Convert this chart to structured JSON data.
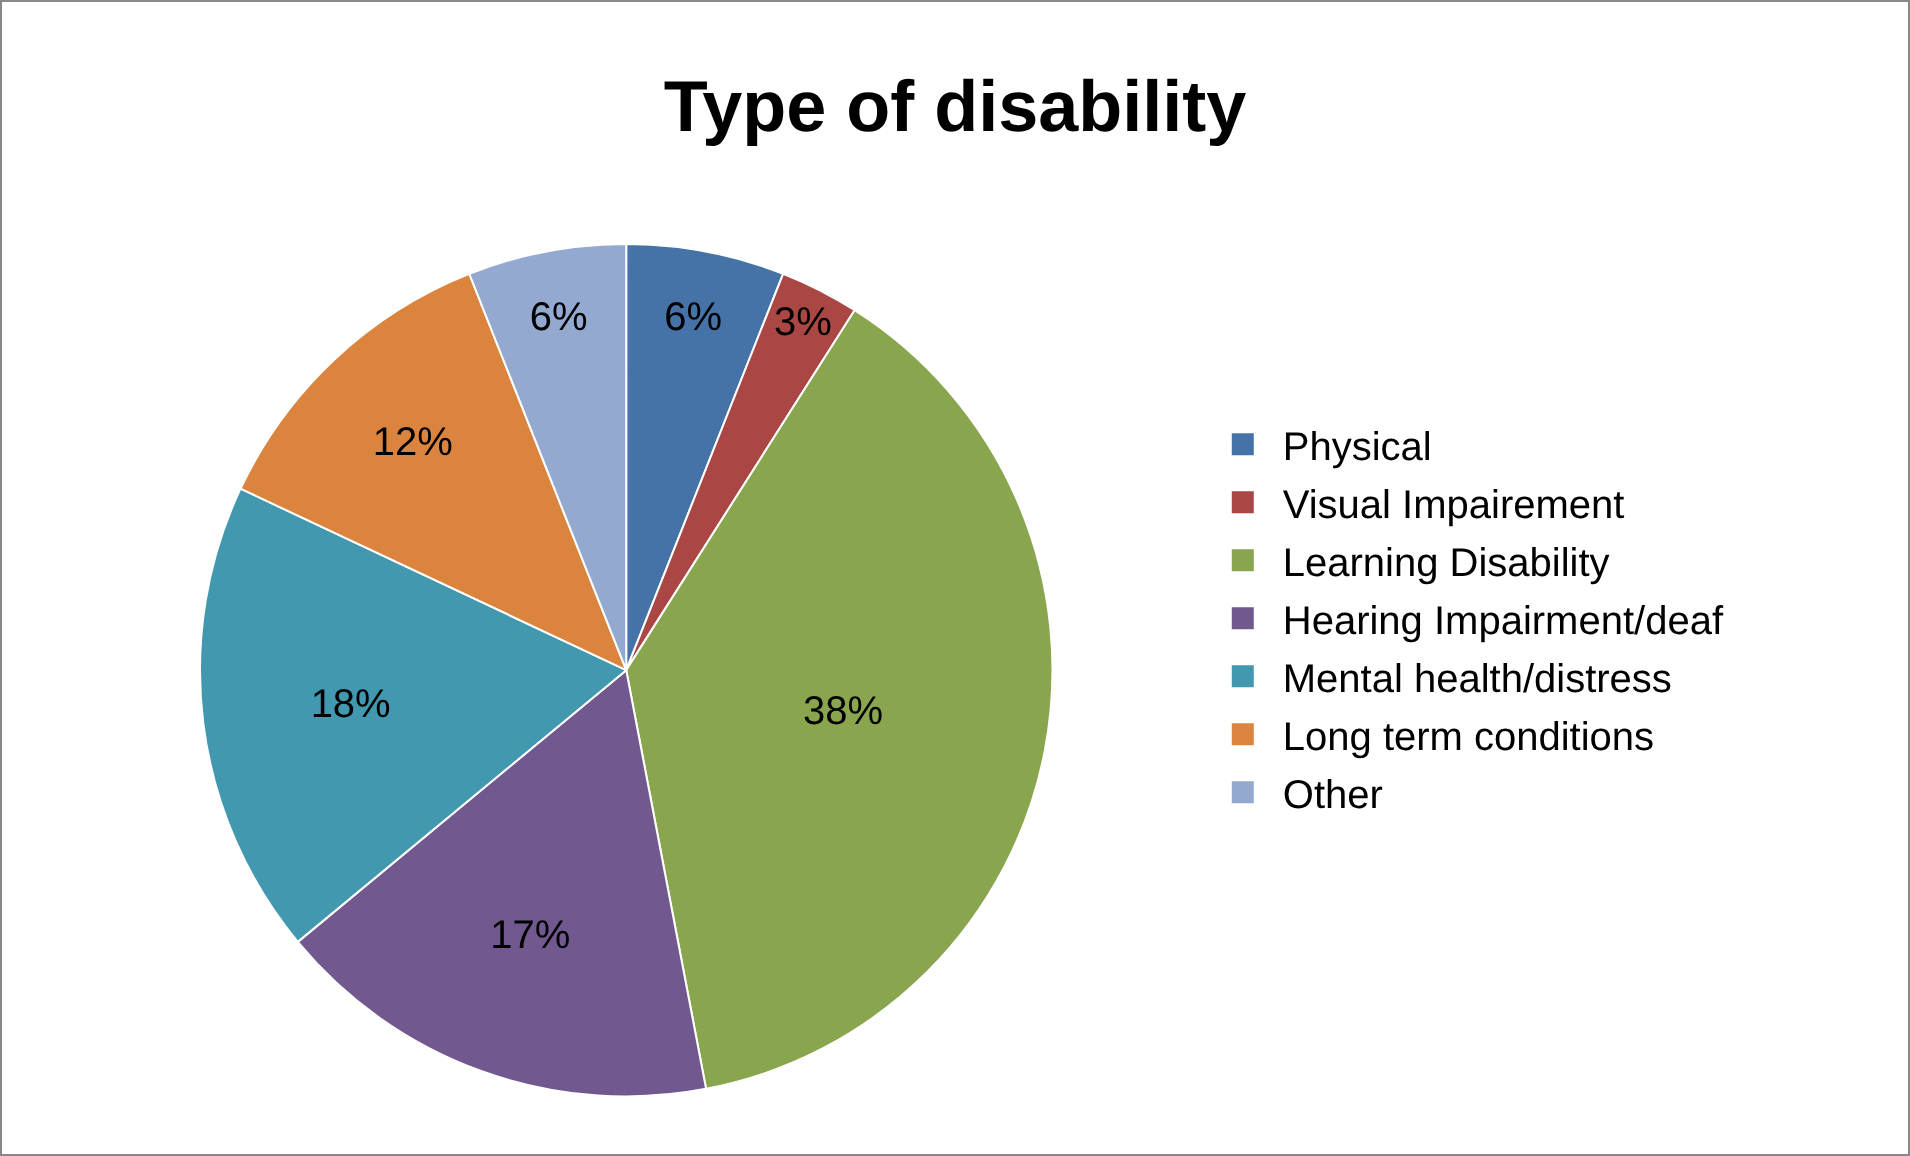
{
  "chart_data": {
    "type": "pie",
    "title": "Type of disability",
    "categories": [
      "Physical",
      "Visual Impairement",
      "Learning Disability",
      "Hearing Impairment/deaf",
      "Mental health/distress",
      "Long term conditions",
      "Other"
    ],
    "values": [
      6,
      3,
      38,
      17,
      18,
      12,
      6
    ],
    "colors": [
      "#4572a7",
      "#aa4643",
      "#89a54e",
      "#71588f",
      "#4198af",
      "#db843d",
      "#93a9cf"
    ],
    "value_labels": [
      "6%",
      "3%",
      "38%",
      "17%",
      "18%",
      "12%",
      "6%"
    ],
    "legend": "right"
  }
}
